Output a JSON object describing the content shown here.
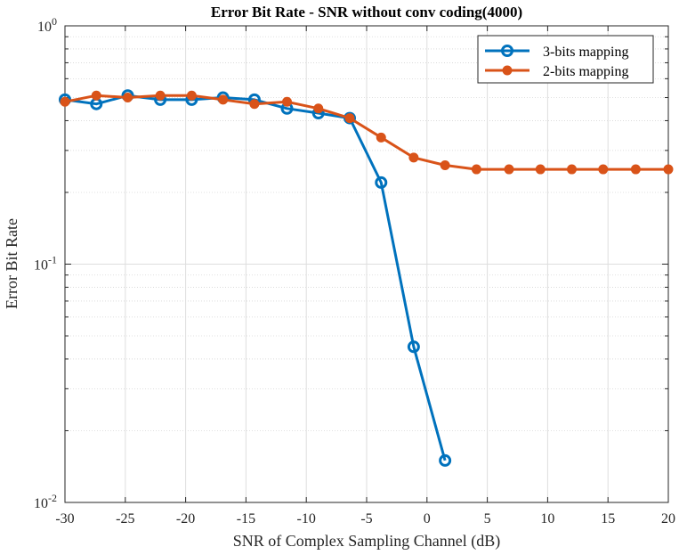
{
  "chart_data": {
    "type": "line",
    "title": "Error Bit Rate - SNR without conv coding(4000)",
    "xlabel": "SNR of Complex Sampling Channel (dB)",
    "ylabel": "Error Bit Rate",
    "xlim": [
      -30,
      20
    ],
    "ylim": [
      0.01,
      1
    ],
    "yscale": "log",
    "grid": true,
    "legend_position": "top-right",
    "x_ticks": [
      "-30",
      "-25",
      "-20",
      "-15",
      "-10",
      "-5",
      "0",
      "5",
      "10",
      "15",
      "20"
    ],
    "y_ticks": [
      {
        "base": "10",
        "exp": "-2"
      },
      {
        "base": "10",
        "exp": "-1"
      },
      {
        "base": "10",
        "exp": "0"
      }
    ],
    "series": [
      {
        "name": "3-bits mapping",
        "color": "#0072BD",
        "marker": "open-circle",
        "x": [
          -30,
          -27.4,
          -24.8,
          -22.1,
          -19.5,
          -16.9,
          -14.3,
          -11.6,
          -9,
          -6.4,
          -3.8,
          -1.1,
          1.5
        ],
        "y": [
          0.49,
          0.47,
          0.51,
          0.49,
          0.49,
          0.5,
          0.49,
          0.45,
          0.43,
          0.41,
          0.22,
          0.045,
          0.015
        ]
      },
      {
        "name": "2-bits mapping",
        "color": "#D95319",
        "marker": "filled-circle",
        "x": [
          -30,
          -27.4,
          -24.8,
          -22.1,
          -19.5,
          -16.9,
          -14.3,
          -11.6,
          -9,
          -6.4,
          -3.8,
          -1.1,
          1.5,
          4.1,
          6.8,
          9.4,
          12,
          14.6,
          17.3,
          20
        ],
        "y": [
          0.48,
          0.51,
          0.5,
          0.51,
          0.51,
          0.49,
          0.47,
          0.48,
          0.45,
          0.41,
          0.34,
          0.28,
          0.26,
          0.25,
          0.25,
          0.25,
          0.25,
          0.25,
          0.25,
          0.25
        ]
      }
    ]
  }
}
